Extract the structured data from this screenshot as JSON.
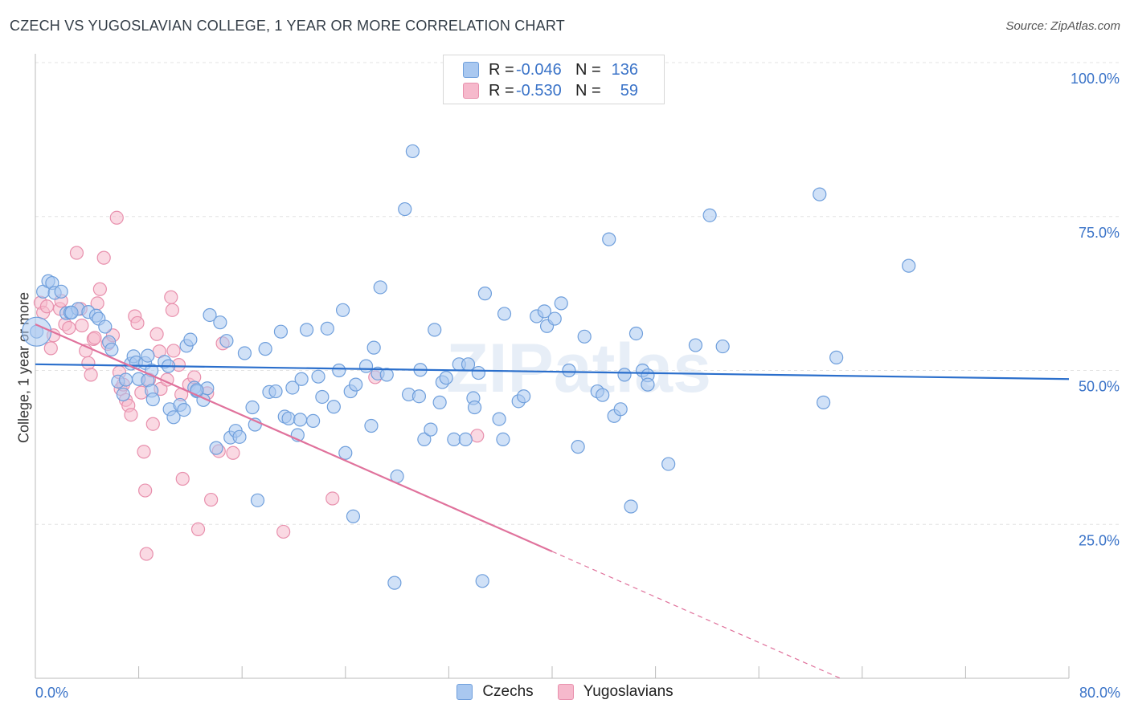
{
  "header": {
    "title": "CZECH VS YUGOSLAVIAN COLLEGE, 1 YEAR OR MORE CORRELATION CHART",
    "source": "Source: ZipAtlas.com"
  },
  "watermark": "ZIPatlas",
  "legend_top": [
    {
      "r_label": "R =",
      "r_value": "-0.046",
      "n_label": "N =",
      "n_value": "136"
    },
    {
      "r_label": "R =",
      "r_value": "-0.530",
      "n_label": "N =",
      "n_value": "59"
    }
  ],
  "legend_bottom": [
    "Czechs",
    "Yugoslavians"
  ],
  "colors": {
    "czech_fill": "#a9c8f0",
    "czech_stroke": "#6f9fdc",
    "czech_line": "#2b6fcc",
    "yugo_fill": "#f6b9cc",
    "yugo_stroke": "#e890ad",
    "yugo_line": "#e0729c",
    "tick_text": "#3a73c8",
    "grid": "#e3e3e3"
  },
  "chart_data": {
    "type": "scatter",
    "title": "CZECH VS YUGOSLAVIAN COLLEGE, 1 YEAR OR MORE CORRELATION CHART",
    "xlabel": "",
    "ylabel": "College, 1 year or more",
    "xlim": [
      0,
      80
    ],
    "ylim": [
      0,
      100
    ],
    "x_tick_labels": [
      "0.0%",
      "80.0%"
    ],
    "y_ticks": [
      25,
      50,
      75,
      100
    ],
    "y_tick_labels": [
      "25.0%",
      "50.0%",
      "75.0%",
      "100.0%"
    ],
    "grid": true,
    "legend_position": "top-center",
    "series": [
      {
        "name": "Czechs",
        "r": -0.046,
        "n": 136,
        "trend": {
          "x": [
            0,
            80
          ],
          "y": [
            51.0,
            48.6
          ]
        },
        "points": [
          [
            0.1,
            56.3
          ],
          [
            0.6,
            62.8
          ],
          [
            1.0,
            64.5
          ],
          [
            1.3,
            64.2
          ],
          [
            1.5,
            62.6
          ],
          [
            2.0,
            62.8
          ],
          [
            2.4,
            59.3
          ],
          [
            2.7,
            59.4
          ],
          [
            3.3,
            60.0
          ],
          [
            4.1,
            59.5
          ],
          [
            4.7,
            58.9
          ],
          [
            4.9,
            58.4
          ],
          [
            5.4,
            57.1
          ],
          [
            5.7,
            54.6
          ],
          [
            5.9,
            53.4
          ],
          [
            6.4,
            48.2
          ],
          [
            6.8,
            46.1
          ],
          [
            7.0,
            48.5
          ],
          [
            7.4,
            51.1
          ],
          [
            7.6,
            52.3
          ],
          [
            7.8,
            51.3
          ],
          [
            8.0,
            48.6
          ],
          [
            8.5,
            51.2
          ],
          [
            8.7,
            52.4
          ],
          [
            9.0,
            50.0
          ],
          [
            8.7,
            48.4
          ],
          [
            9.0,
            46.7
          ],
          [
            9.1,
            45.3
          ],
          [
            10.0,
            51.4
          ],
          [
            10.3,
            50.7
          ],
          [
            10.4,
            43.7
          ],
          [
            10.7,
            42.4
          ],
          [
            11.2,
            44.4
          ],
          [
            11.5,
            43.6
          ],
          [
            11.7,
            54.0
          ],
          [
            12.0,
            55.0
          ],
          [
            12.3,
            47.2
          ],
          [
            12.5,
            46.6
          ],
          [
            13.0,
            45.2
          ],
          [
            13.3,
            47.1
          ],
          [
            13.5,
            59.0
          ],
          [
            14.3,
            57.8
          ],
          [
            14.0,
            37.4
          ],
          [
            14.8,
            54.8
          ],
          [
            15.1,
            39.1
          ],
          [
            15.5,
            40.2
          ],
          [
            15.8,
            39.2
          ],
          [
            16.2,
            52.8
          ],
          [
            16.8,
            44.0
          ],
          [
            17.0,
            41.2
          ],
          [
            17.2,
            28.9
          ],
          [
            17.8,
            53.5
          ],
          [
            18.1,
            46.5
          ],
          [
            18.6,
            46.6
          ],
          [
            19.0,
            56.3
          ],
          [
            19.3,
            42.5
          ],
          [
            19.6,
            42.2
          ],
          [
            19.9,
            47.2
          ],
          [
            20.3,
            39.5
          ],
          [
            20.5,
            42.0
          ],
          [
            20.6,
            48.6
          ],
          [
            21.0,
            56.6
          ],
          [
            21.5,
            41.8
          ],
          [
            21.9,
            49.0
          ],
          [
            22.2,
            45.7
          ],
          [
            22.6,
            56.8
          ],
          [
            23.1,
            44.1
          ],
          [
            23.5,
            50.0
          ],
          [
            23.8,
            59.8
          ],
          [
            24.0,
            36.6
          ],
          [
            24.6,
            26.3
          ],
          [
            24.4,
            46.6
          ],
          [
            24.8,
            47.7
          ],
          [
            25.6,
            50.7
          ],
          [
            26.0,
            41.0
          ],
          [
            26.2,
            53.7
          ],
          [
            26.5,
            49.5
          ],
          [
            26.7,
            63.5
          ],
          [
            27.2,
            49.3
          ],
          [
            28.0,
            32.8
          ],
          [
            27.8,
            15.5
          ],
          [
            28.6,
            76.2
          ],
          [
            28.9,
            46.1
          ],
          [
            29.2,
            85.6
          ],
          [
            29.7,
            45.8
          ],
          [
            29.8,
            50.1
          ],
          [
            30.1,
            38.8
          ],
          [
            30.6,
            40.4
          ],
          [
            30.9,
            56.6
          ],
          [
            31.3,
            44.8
          ],
          [
            31.5,
            48.1
          ],
          [
            31.8,
            48.8
          ],
          [
            32.4,
            38.8
          ],
          [
            32.8,
            51.0
          ],
          [
            33.3,
            38.8
          ],
          [
            33.5,
            51.0
          ],
          [
            33.9,
            45.5
          ],
          [
            34.0,
            44.0
          ],
          [
            34.3,
            49.6
          ],
          [
            34.6,
            15.8
          ],
          [
            34.8,
            62.5
          ],
          [
            35.9,
            42.1
          ],
          [
            36.2,
            38.8
          ],
          [
            36.3,
            59.2
          ],
          [
            37.4,
            45.0
          ],
          [
            37.8,
            45.8
          ],
          [
            38.8,
            58.8
          ],
          [
            39.4,
            59.6
          ],
          [
            39.6,
            57.2
          ],
          [
            40.2,
            58.4
          ],
          [
            40.7,
            60.9
          ],
          [
            41.3,
            50.0
          ],
          [
            42.0,
            37.6
          ],
          [
            42.5,
            55.5
          ],
          [
            43.5,
            46.6
          ],
          [
            43.9,
            46.0
          ],
          [
            44.4,
            71.3
          ],
          [
            44.8,
            42.6
          ],
          [
            45.3,
            43.7
          ],
          [
            45.6,
            49.3
          ],
          [
            46.1,
            27.9
          ],
          [
            46.5,
            56.0
          ],
          [
            47.0,
            50.0
          ],
          [
            47.4,
            49.2
          ],
          [
            47.4,
            47.7
          ],
          [
            49.0,
            34.8
          ],
          [
            51.1,
            54.1
          ],
          [
            52.2,
            75.2
          ],
          [
            53.2,
            53.9
          ],
          [
            60.7,
            78.6
          ],
          [
            61.0,
            44.8
          ],
          [
            62.0,
            52.1
          ],
          [
            67.6,
            67.0
          ],
          [
            2.8,
            59.4
          ],
          [
            12.5,
            46.8
          ]
        ],
        "large_point": [
          0.1,
          56.3
        ]
      },
      {
        "name": "Yugoslavians",
        "r": -0.53,
        "n": 59,
        "trend": {
          "x": [
            0,
            40
          ],
          "y": [
            57.5,
            20.6
          ]
        },
        "trend_dashed": {
          "x": [
            40,
            62.3
          ],
          "y": [
            20.6,
            0
          ]
        },
        "points": [
          [
            0.4,
            61.0
          ],
          [
            0.6,
            59.4
          ],
          [
            0.9,
            60.4
          ],
          [
            1.2,
            53.6
          ],
          [
            1.4,
            55.7
          ],
          [
            1.9,
            60.0
          ],
          [
            2.3,
            57.5
          ],
          [
            2.6,
            56.9
          ],
          [
            3.2,
            69.1
          ],
          [
            3.5,
            60.0
          ],
          [
            3.6,
            57.3
          ],
          [
            3.9,
            53.2
          ],
          [
            4.1,
            51.2
          ],
          [
            4.3,
            49.3
          ],
          [
            4.5,
            55.1
          ],
          [
            4.6,
            55.3
          ],
          [
            4.8,
            60.9
          ],
          [
            5.0,
            63.2
          ],
          [
            5.3,
            68.3
          ],
          [
            5.6,
            54.3
          ],
          [
            6.0,
            55.7
          ],
          [
            6.3,
            74.8
          ],
          [
            6.5,
            49.7
          ],
          [
            6.6,
            47.0
          ],
          [
            6.8,
            47.7
          ],
          [
            7.0,
            45.2
          ],
          [
            7.2,
            44.3
          ],
          [
            7.4,
            42.8
          ],
          [
            7.7,
            58.8
          ],
          [
            7.9,
            57.7
          ],
          [
            8.2,
            46.4
          ],
          [
            8.4,
            36.8
          ],
          [
            8.5,
            30.5
          ],
          [
            8.6,
            20.2
          ],
          [
            8.8,
            48.5
          ],
          [
            9.1,
            41.3
          ],
          [
            9.4,
            55.9
          ],
          [
            9.6,
            53.1
          ],
          [
            9.7,
            47.0
          ],
          [
            10.2,
            48.5
          ],
          [
            10.5,
            61.9
          ],
          [
            10.6,
            59.8
          ],
          [
            10.7,
            53.2
          ],
          [
            11.1,
            50.9
          ],
          [
            11.3,
            46.1
          ],
          [
            11.4,
            32.4
          ],
          [
            11.9,
            47.7
          ],
          [
            12.3,
            48.9
          ],
          [
            12.6,
            24.2
          ],
          [
            13.3,
            46.3
          ],
          [
            13.6,
            29.0
          ],
          [
            14.2,
            36.9
          ],
          [
            14.5,
            54.4
          ],
          [
            15.3,
            36.6
          ],
          [
            19.2,
            23.8
          ],
          [
            23.0,
            29.2
          ],
          [
            26.3,
            48.9
          ],
          [
            34.2,
            39.4
          ],
          [
            2.0,
            61.3
          ]
        ]
      }
    ]
  }
}
